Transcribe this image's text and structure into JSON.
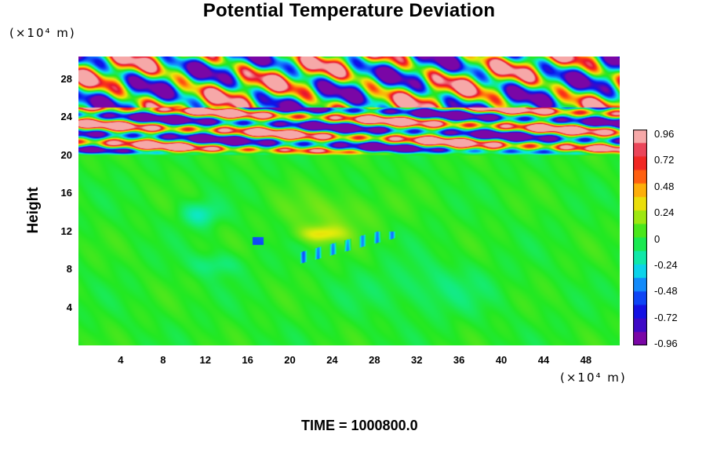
{
  "chart_data": {
    "type": "heatmap",
    "title": "Potential Temperature Deviation",
    "ylabel": "Height",
    "y_unit": "(×10⁴ m)",
    "x_unit": "(×10⁴ m)",
    "x_ticks": [
      4,
      8,
      12,
      16,
      20,
      24,
      28,
      32,
      36,
      40,
      44,
      48
    ],
    "y_ticks": [
      4,
      8,
      12,
      16,
      20,
      24,
      28
    ],
    "xlim": [
      0,
      51.2
    ],
    "ylim": [
      0,
      30.4
    ],
    "colorbar": {
      "labels": [
        "0.96",
        "0.72",
        "0.48",
        "0.24",
        "0",
        "-0.24",
        "-0.48",
        "-0.72",
        "-0.96"
      ],
      "range": [
        -0.96,
        0.96
      ]
    },
    "field_description": {
      "lower_layer": {
        "y_range": [
          0,
          20
        ],
        "value_range": [
          -0.3,
          0.3
        ],
        "notes": "mostly near 0 with a weak positive patch near x=24, y=12 and small negative cells along y≈11"
      },
      "upper_layer": {
        "y_range": [
          20,
          30.4
        ],
        "value_range": [
          -0.96,
          0.96
        ],
        "notes": "strong tilted alternating positive/negative bands"
      }
    },
    "annotation": "TIME = 1000800.0"
  },
  "colors": {
    "positive_max": "#f6a8a8",
    "negative_max": "#7a06a6",
    "neutral": "#22e822"
  }
}
